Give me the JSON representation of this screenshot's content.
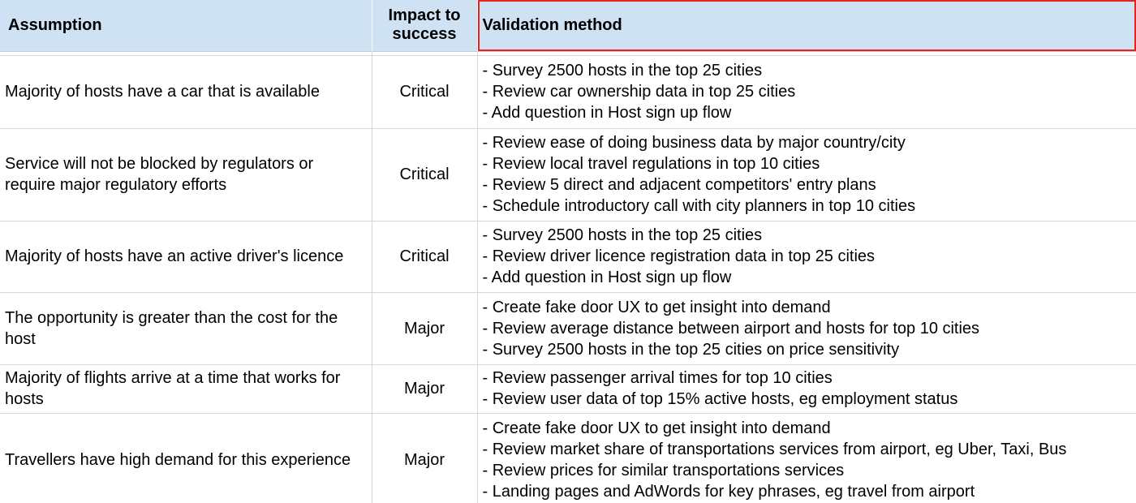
{
  "headers": {
    "assumption": "Assumption",
    "impact": "Impact to success",
    "validation": "Validation method"
  },
  "rows": [
    {
      "assumption": " Majority of hosts have a car that is available",
      "impact": "Critical",
      "validation": [
        "- Survey 2500 hosts in the top 25 cities",
        "- Review car ownership data in top 25 cities",
        "- Add question in Host sign up flow"
      ]
    },
    {
      "assumption": " Service will not be blocked by regulators or require major regulatory efforts",
      "impact": "Critical",
      "validation": [
        "- Review ease of doing business data by major country/city",
        "- Review local travel regulations in top 10 cities",
        "- Review 5 direct and adjacent competitors' entry plans",
        "- Schedule introductory call with city planners in top 10 cities"
      ]
    },
    {
      "assumption": " Majority of hosts have an active driver's licence",
      "impact": "Critical",
      "validation": [
        "- Survey 2500 hosts in the top 25 cities",
        "- Review driver licence registration data in top 25 cities",
        "- Add question in Host sign up flow"
      ]
    },
    {
      "assumption": " The opportunity is greater than the cost for the host",
      "impact": "Major",
      "validation": [
        "- Create fake door UX to get insight into demand",
        "- Review average distance between airport and hosts for top 10 cities",
        "- Survey 2500 hosts in the top 25 cities on price sensitivity"
      ]
    },
    {
      "assumption": " Majority of flights arrive at a time that works for hosts",
      "impact": "Major",
      "validation": [
        "- Review passenger arrival times for top 10 cities",
        "- Review user data of top 15% active hosts, eg employment status"
      ]
    },
    {
      "assumption": " Travellers have high demand for this experience",
      "impact": "Major",
      "validation": [
        "- Create fake door UX to get insight into demand",
        "- Review market share of transportations services from airport, eg Uber, Taxi, Bus",
        "- Review prices for similar transportations services",
        "- Landing pages and AdWords for key phrases, eg travel from airport"
      ]
    }
  ]
}
